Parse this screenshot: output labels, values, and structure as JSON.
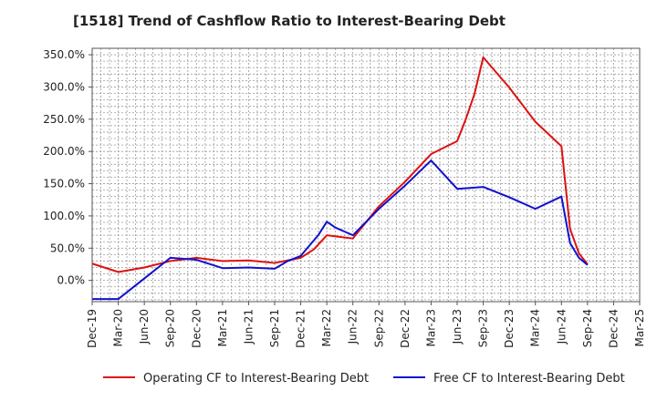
{
  "chart_data": {
    "type": "line",
    "title": "[1518]  Trend of Cashflow Ratio to Interest-Bearing Debt",
    "xlabel": "",
    "ylabel": "",
    "y_ticks": [
      "350.0%",
      "300.0%",
      "250.0%",
      "200.0%",
      "150.0%",
      "100.0%",
      "50.0%",
      "0.0%"
    ],
    "y_tick_values": [
      350,
      300,
      250,
      200,
      150,
      100,
      50,
      0
    ],
    "ylim": [
      -33,
      360
    ],
    "x_ticks": [
      "Dec-19",
      "Mar-20",
      "Jun-20",
      "Sep-20",
      "Dec-20",
      "Mar-21",
      "Jun-21",
      "Sep-21",
      "Dec-21",
      "Mar-22",
      "Jun-22",
      "Sep-22",
      "Dec-22",
      "Mar-23",
      "Jun-23",
      "Sep-23",
      "Dec-23",
      "Mar-24",
      "Jun-24",
      "Sep-24",
      "Dec-24",
      "Mar-25"
    ],
    "grid": true,
    "legend_position": "bottom",
    "series": [
      {
        "name": "Operating CF to Interest-Bearing Debt",
        "color": "#dd1111",
        "points": [
          [
            0,
            26
          ],
          [
            1,
            13
          ],
          [
            2,
            20
          ],
          [
            3,
            30
          ],
          [
            4,
            35
          ],
          [
            5,
            30
          ],
          [
            6,
            31
          ],
          [
            7,
            27
          ],
          [
            8,
            35
          ],
          [
            8.5,
            48
          ],
          [
            9,
            70
          ],
          [
            10,
            65
          ],
          [
            11,
            115
          ],
          [
            12,
            153
          ],
          [
            13,
            196
          ],
          [
            14,
            216
          ],
          [
            14.33,
            250
          ],
          [
            14.67,
            290
          ],
          [
            15,
            346
          ],
          [
            16,
            299
          ],
          [
            17,
            246
          ],
          [
            18,
            208
          ],
          [
            18.33,
            80
          ],
          [
            18.67,
            42
          ],
          [
            19,
            25
          ]
        ]
      },
      {
        "name": "Free CF to Interest-Bearing Debt",
        "color": "#1111cc",
        "points": [
          [
            0,
            -29
          ],
          [
            1,
            -29
          ],
          [
            2,
            3
          ],
          [
            3,
            35
          ],
          [
            4,
            32
          ],
          [
            5,
            19
          ],
          [
            6,
            20
          ],
          [
            7,
            18
          ],
          [
            7.5,
            30
          ],
          [
            8,
            38
          ],
          [
            8.67,
            70
          ],
          [
            9,
            91
          ],
          [
            9.33,
            82
          ],
          [
            10,
            70
          ],
          [
            11,
            111
          ],
          [
            12,
            147
          ],
          [
            13,
            186
          ],
          [
            14,
            142
          ],
          [
            15,
            145
          ],
          [
            16,
            129
          ],
          [
            17,
            111
          ],
          [
            18,
            130
          ],
          [
            18.33,
            58
          ],
          [
            18.67,
            35
          ],
          [
            19,
            24
          ]
        ]
      }
    ]
  }
}
